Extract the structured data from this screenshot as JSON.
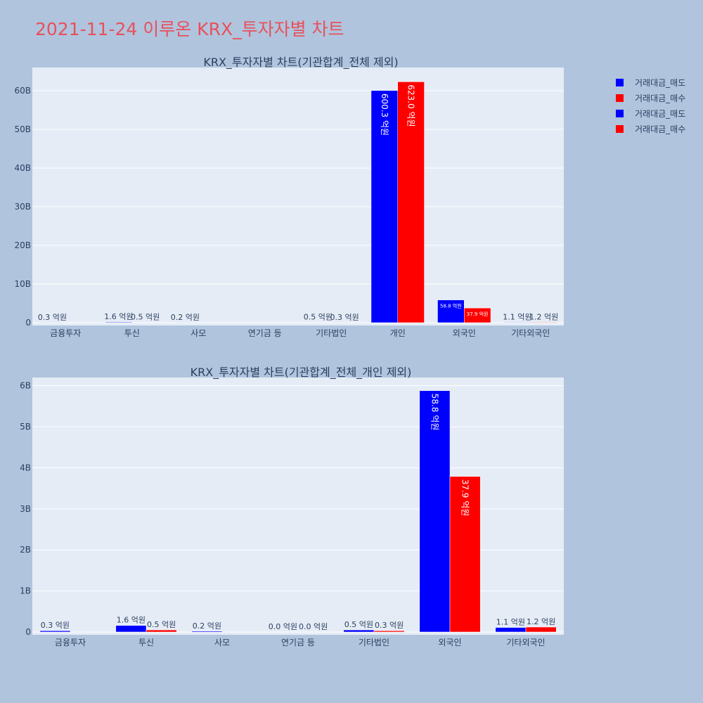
{
  "page_title": "2021-11-24 이루온 KRX_투자자별 차트",
  "legend": [
    {
      "label": "거래대금_매도",
      "color": "#0000ff"
    },
    {
      "label": "거래대금_매수",
      "color": "#ff0000"
    },
    {
      "label": "거래대금_매도",
      "color": "#0000ff"
    },
    {
      "label": "거래대금_매수",
      "color": "#ff0000"
    }
  ],
  "chart_data": [
    {
      "type": "bar",
      "title": "KRX_투자자별 차트(기관합계_전체 제외)",
      "categories": [
        "금융투자",
        "투신",
        "사모",
        "연기금 등",
        "기타법인",
        "개인",
        "외국인",
        "기타외국인"
      ],
      "series": [
        {
          "name": "거래대금_매도",
          "color": "#0000ff",
          "values": [
            0.03,
            0.16,
            0.02,
            0,
            0.05,
            60.03,
            5.88,
            0.11
          ],
          "labels": [
            "0.3 억원",
            "1.6 억원",
            "0.2 억원",
            "",
            "0.5 억원",
            "600.3 억원",
            "58.8 억원",
            "1.1 억원"
          ]
        },
        {
          "name": "거래대금_매수",
          "color": "#ff0000",
          "values": [
            0,
            0.05,
            0,
            0,
            0.03,
            62.3,
            3.79,
            0.12
          ],
          "labels": [
            "",
            "0.5 억원",
            "",
            "",
            "0.3 억원",
            "623.0 억원",
            "37.9 억원",
            "1.2 억원"
          ]
        }
      ],
      "ylim": [
        0,
        66
      ],
      "yticks": [
        0,
        10,
        20,
        30,
        40,
        50,
        60
      ],
      "ytick_labels": [
        "0",
        "10B",
        "20B",
        "30B",
        "40B",
        "50B",
        "60B"
      ],
      "grid": true
    },
    {
      "type": "bar",
      "title": "KRX_투자자별 차트(기관합계_전체_개인 제외)",
      "categories": [
        "금융투자",
        "투신",
        "사모",
        "연기금 등",
        "기타법인",
        "외국인",
        "기타외국인"
      ],
      "series": [
        {
          "name": "거래대금_매도",
          "color": "#0000ff",
          "values": [
            0.03,
            0.16,
            0.02,
            0,
            0.05,
            5.88,
            0.11
          ],
          "labels": [
            "0.3 억원",
            "1.6 억원",
            "0.2 억원",
            "0.0 억원",
            "0.5 억원",
            "58.8 억원",
            "1.1 억원"
          ]
        },
        {
          "name": "거래대금_매수",
          "color": "#ff0000",
          "values": [
            0,
            0.05,
            0,
            0,
            0.03,
            3.79,
            0.12
          ],
          "labels": [
            "",
            "0.5 억원",
            "",
            "0.0 억원",
            "0.3 억원",
            "37.9 억원",
            "1.2 억원"
          ]
        }
      ],
      "ylim": [
        0,
        6.2
      ],
      "yticks": [
        0,
        1,
        2,
        3,
        4,
        5,
        6
      ],
      "ytick_labels": [
        "0",
        "1B",
        "2B",
        "3B",
        "4B",
        "5B",
        "6B"
      ],
      "grid": true
    }
  ]
}
